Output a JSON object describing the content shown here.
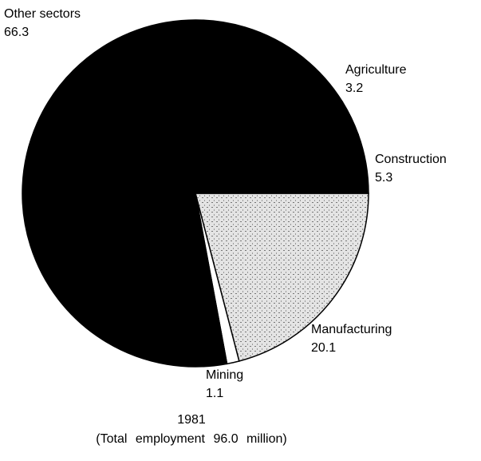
{
  "chart_data": {
    "type": "pie",
    "categories": [
      "Manufacturing",
      "Mining",
      "Other sectors",
      "Agriculture",
      "Construction"
    ],
    "values": [
      20.1,
      1.1,
      66.3,
      3.2,
      5.3
    ],
    "colors": [
      "#d9d9d9",
      "#ffffff",
      "#000000",
      "#000000",
      "#000000"
    ],
    "start_angle": 0,
    "direction": "clockwise",
    "caption": [
      "1981",
      "(Total employment 96.0 million)"
    ]
  }
}
